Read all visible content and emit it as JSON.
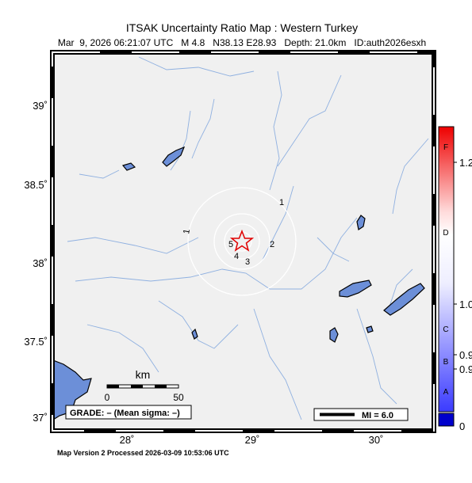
{
  "title": "ITSAK Uncertainty Ratio Map : Western Turkey",
  "subtitle": "Mar  9, 2026 06:21:07 UTC   M 4.8   N38.13 E28.93   Depth: 21.0km   ID:auth2026esxh",
  "map": {
    "lat_labels": [
      "39˚",
      "38.5˚",
      "38˚",
      "37.5˚",
      "37˚"
    ],
    "lon_labels": [
      "28˚",
      "29˚",
      "30˚"
    ],
    "contour_labels": [
      "1",
      "1",
      "2",
      "3",
      "4",
      "5"
    ],
    "scale_bar": {
      "unit": "km",
      "start": "0",
      "end": "50"
    },
    "grade": "GRADE: – (Mean sigma: –)",
    "legend": "MI = 6.0"
  },
  "colorbar": {
    "letters": [
      "F",
      "D",
      "C",
      "B",
      "A"
    ],
    "values": [
      "1.2",
      "1.0",
      "0.9",
      "0.9",
      "0"
    ]
  },
  "footer": "Map Version 2 Processed 2026-03-09 10:53:06 UTC"
}
